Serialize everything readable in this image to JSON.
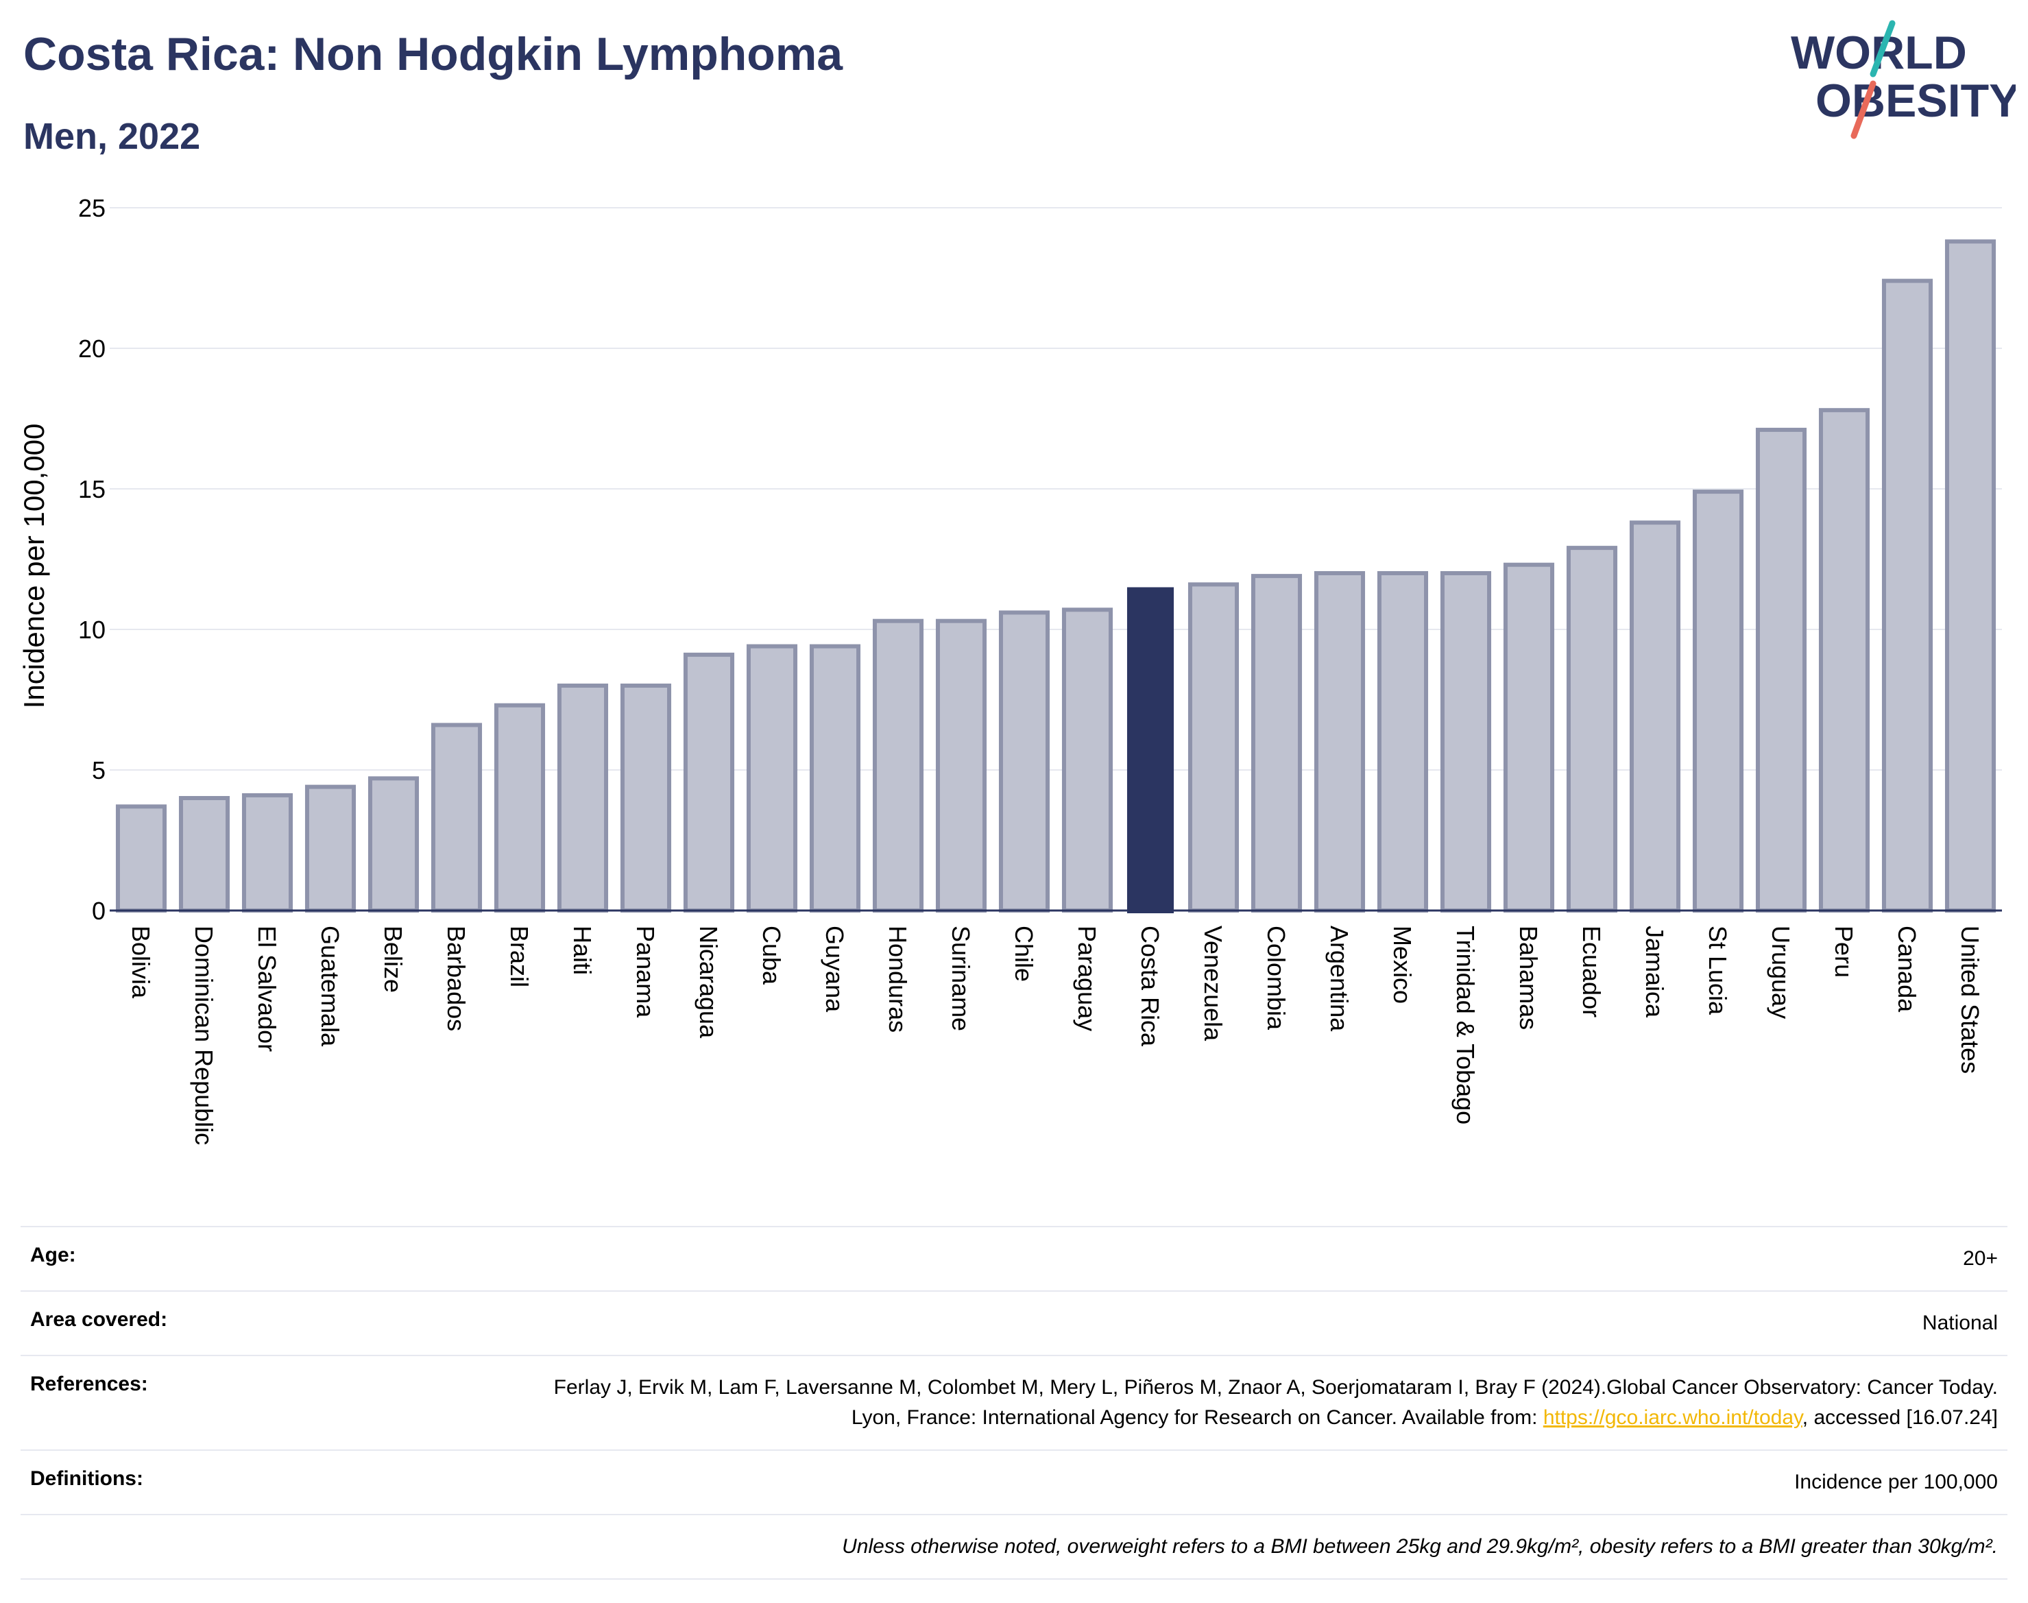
{
  "header": {
    "title": "Costa Rica: Non Hodgkin Lymphoma",
    "subtitle": "Men, 2022"
  },
  "logo": {
    "line1": "WORLD",
    "line2": "OBESITY",
    "colors": {
      "text": "#2b3561",
      "slash_top": "#2bb5b0",
      "slash_bottom": "#e86a5a"
    }
  },
  "colors": {
    "bar": "#bfc2d0",
    "bar_stroke": "#8e93ab",
    "highlight": "#2b3561",
    "grid": "#e6e8ef",
    "axis": "#2b3561"
  },
  "chart_data": {
    "type": "bar",
    "ylabel": "Incidence per 100,000",
    "ylim": [
      0,
      25
    ],
    "yticks": [
      0,
      5,
      10,
      15,
      20,
      25
    ],
    "grid": true,
    "highlight": "Costa Rica",
    "categories": [
      "Bolivia",
      "Dominican Republic",
      "El Salvador",
      "Guatemala",
      "Belize",
      "Barbados",
      "Brazil",
      "Haiti",
      "Panama",
      "Nicaragua",
      "Cuba",
      "Guyana",
      "Honduras",
      "Suriname",
      "Chile",
      "Paraguay",
      "Costa Rica",
      "Venezuela",
      "Colombia",
      "Argentina",
      "Mexico",
      "Trinidad & Tobago",
      "Bahamas",
      "Ecuador",
      "Jamaica",
      "St Lucia",
      "Uruguay",
      "Peru",
      "Canada",
      "United States"
    ],
    "values": [
      3.7,
      4.0,
      4.1,
      4.4,
      4.7,
      6.6,
      7.3,
      8.0,
      8.0,
      9.1,
      9.4,
      9.4,
      10.3,
      10.3,
      10.6,
      10.7,
      11.5,
      11.6,
      11.9,
      12.0,
      12.0,
      12.0,
      12.3,
      12.9,
      13.8,
      14.9,
      17.1,
      17.8,
      22.4,
      23.8
    ]
  },
  "info": {
    "age_label": "Age:",
    "age_value": "20+",
    "area_label": "Area covered:",
    "area_value": "National",
    "references_label": "References:",
    "references_text": "Ferlay J, Ervik M, Lam F, Laversanne M, Colombet M, Mery L, Piñeros M, Znaor A, Soerjomataram I, Bray F (2024).Global Cancer Observatory: Cancer Today. Lyon, France: International Agency for Research on Cancer. Available from:",
    "references_link": "https://gco.iarc.who.int/today",
    "references_tail": ", accessed [16.07.24]",
    "definitions_label": "Definitions:",
    "definitions_value": "Incidence per 100,000",
    "note": "Unless otherwise noted, overweight refers to a BMI between 25kg and 29.9kg/m², obesity refers to a BMI greater than 30kg/m²."
  }
}
